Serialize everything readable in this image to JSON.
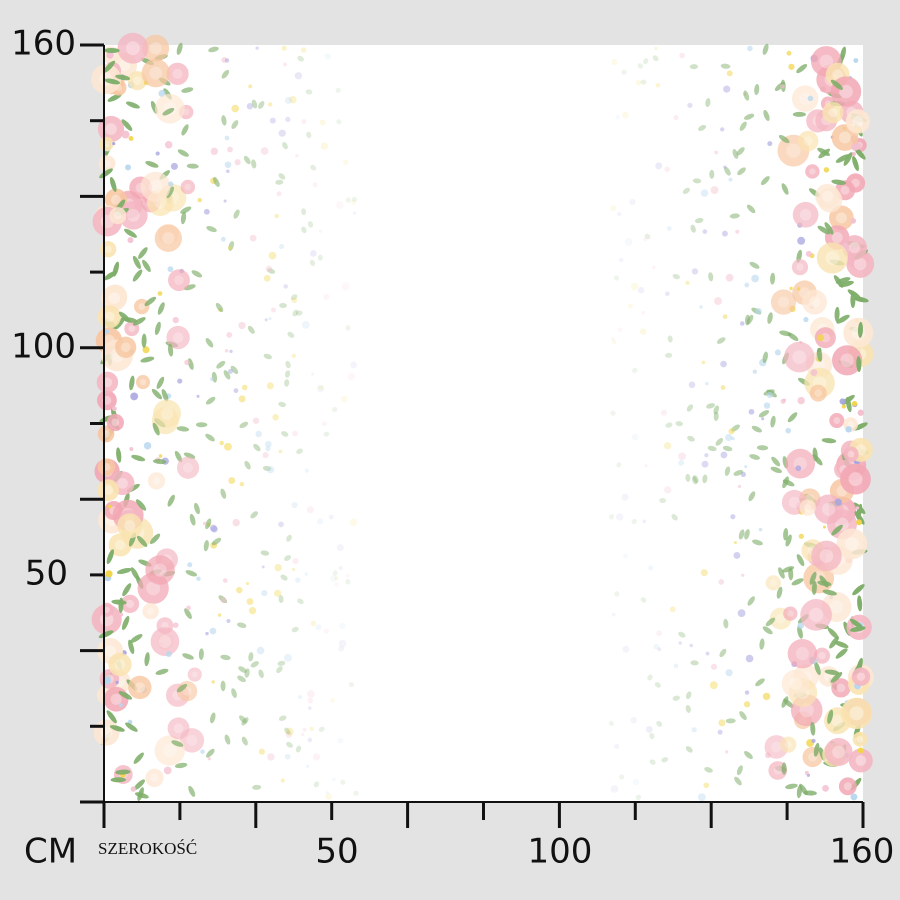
{
  "left_ruler": {
    "labels": [
      "160",
      "100",
      "50"
    ]
  },
  "bottom_ruler": {
    "unit": "CM",
    "caption": "SZEROKOŚĆ",
    "labels": [
      "50",
      "100",
      "160"
    ]
  }
}
